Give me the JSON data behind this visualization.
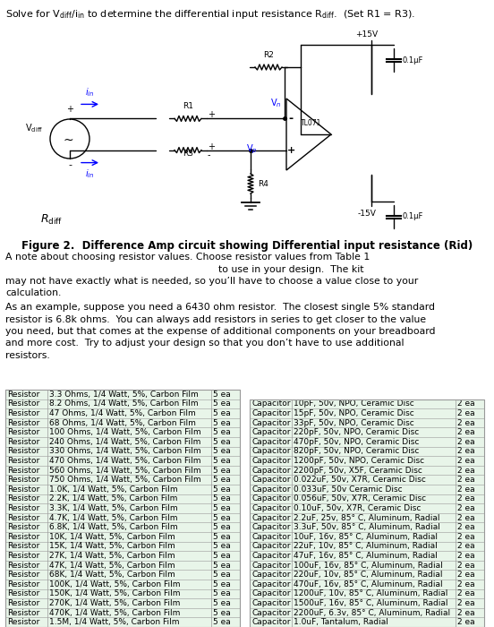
{
  "title_line": "Solve for V$_{\\rm diff}$/i$_{\\rm in}$ to determine the differential input resistance R$_{\\rm diff}$.  (Set R1 = R3).",
  "fig_caption": "Figure 2.  Difference Amp circuit showing Differential input resistance (Rid)",
  "para1_lines": [
    "A note about choosing resistor values. Choose resistor values from Table 1",
    "                                                                    to use in your design.  The kit",
    "may not have exactly what is needed, so you’ll have to choose a value close to your",
    "calculation."
  ],
  "para2_lines": [
    "As an example, suppose you need a 6430 ohm resistor.  The closest single 5% standard",
    "resistor is 6.8k ohms.  You can always add resistors in series to get closer to the value",
    "you need, but that comes at the expense of additional components on your breadboard",
    "and more cost.  Try to adjust your design so that you don’t have to use additional",
    "resistors."
  ],
  "resistor_rows": [
    [
      "Resistor",
      "3.3 Ohms, 1/4 Watt, 5%, Carbon Film",
      "5 ea"
    ],
    [
      "Resistor",
      "8.2 Ohms, 1/4 Watt, 5%, Carbon Film",
      "5 ea"
    ],
    [
      "Resistor",
      "47 Ohms, 1/4 Watt, 5%, Carbon Film",
      "5 ea"
    ],
    [
      "Resistor",
      "68 Ohms, 1/4 Watt, 5%, Carbon Film",
      "5 ea"
    ],
    [
      "Resistor",
      "100 Ohms, 1/4 Watt, 5%, Carbon Film",
      "5 ea"
    ],
    [
      "Resistor",
      "240 Ohms, 1/4 Watt, 5%, Carbon Film",
      "5 ea"
    ],
    [
      "Resistor",
      "330 Ohms, 1/4 Watt, 5%, Carbon Film",
      "5 ea"
    ],
    [
      "Resistor",
      "470 Ohms, 1/4 Watt, 5%, Carbon Film",
      "5 ea"
    ],
    [
      "Resistor",
      "560 Ohms, 1/4 Watt, 5%, Carbon Film",
      "5 ea"
    ],
    [
      "Resistor",
      "750 Ohms, 1/4 Watt, 5%, Carbon Film",
      "5 ea"
    ],
    [
      "Resistor",
      "1.0K, 1/4 Watt, 5%, Carbon Film",
      "5 ea"
    ],
    [
      "Resistor",
      "2.2K, 1/4 Watt, 5%, Carbon Film",
      "5 ea"
    ],
    [
      "Resistor",
      "3.3K, 1/4 Watt, 5%, Carbon Film",
      "5 ea"
    ],
    [
      "Resistor",
      "4.7K, 1/4 Watt, 5%, Carbon Film",
      "5 ea"
    ],
    [
      "Resistor",
      "6.8K, 1/4 Watt, 5%, Carbon Film",
      "5 ea"
    ],
    [
      "Resistor",
      "10K, 1/4 Watt, 5%, Carbon Film",
      "5 ea"
    ],
    [
      "Resistor",
      "15K, 1/4 Watt, 5%, Carbon Film",
      "5 ea"
    ],
    [
      "Resistor",
      "27K, 1/4 Watt, 5%, Carbon Film",
      "5 ea"
    ],
    [
      "Resistor",
      "47K, 1/4 Watt, 5%, Carbon Film",
      "5 ea"
    ],
    [
      "Resistor",
      "68K, 1/4 Watt, 5%, Carbon Film",
      "5 ea"
    ],
    [
      "Resistor",
      "100K, 1/4 Watt, 5%, Carbon Film",
      "5 ea"
    ],
    [
      "Resistor",
      "150K, 1/4 Watt, 5%, Carbon Film",
      "5 ea"
    ],
    [
      "Resistor",
      "270K, 1/4 Watt, 5%, Carbon Film",
      "5 ea"
    ],
    [
      "Resistor",
      "470K, 1/4 Watt, 5%, Carbon Film",
      "5 ea"
    ],
    [
      "Resistor",
      "1.5M, 1/4 Watt, 5%, Carbon Film",
      "5 ea"
    ]
  ],
  "capacitor_rows": [
    [
      "Capacitor",
      "10pF, 50v, NPO, Ceramic Disc",
      "2 ea"
    ],
    [
      "Capacitor",
      "15pF, 50v, NPO, Ceramic Disc",
      "2 ea"
    ],
    [
      "Capacitor",
      "33pF, 50v, NPO, Ceramic Disc",
      "2 ea"
    ],
    [
      "Capacitor",
      "220pF, 50v, NPO, Ceramic Disc",
      "2 ea"
    ],
    [
      "Capacitor",
      "470pF, 50v, NPO, Ceramic Disc",
      "2 ea"
    ],
    [
      "Capacitor",
      "820pF, 50v, NPO, Ceramic Disc",
      "2 ea"
    ],
    [
      "Capacitor",
      "1200pF, 50v, NPO, Ceramic Disc",
      "2 ea"
    ],
    [
      "Capacitor",
      "2200pF, 50v, X5F, Ceramic Disc",
      "2 ea"
    ],
    [
      "Capacitor",
      "0.022uF, 50v, X7R, Ceramic Disc",
      "2 ea"
    ],
    [
      "Capacitor",
      "0.033uF, 50v Ceramic Disc",
      "2 ea"
    ],
    [
      "Capacitor",
      "0.056uF, 50v, X7R, Ceramic Disc",
      "2 ea"
    ],
    [
      "Capacitor",
      "0.10uF, 50v, X7R, Ceramic Disc",
      "2 ea"
    ],
    [
      "Capacitor",
      "2.2uF, 25v, 85° C, Aluminum, Radial",
      "2 ea"
    ],
    [
      "Capacitor",
      "3.3uF, 50v, 85° C, Aluminum, Radial",
      "2 ea"
    ],
    [
      "Capacitor",
      "10uF, 16v, 85° C, Aluminum, Radial",
      "2 ea"
    ],
    [
      "Capacitor",
      "22uF, 10v, 85° C, Aluminum, Radial",
      "2 ea"
    ],
    [
      "Capacitor",
      "47uF, 16v, 85° C, Aluminum, Radial",
      "2 ea"
    ],
    [
      "Capacitor",
      "100uF, 16v, 85° C, Aluminum, Radial",
      "2 ea"
    ],
    [
      "Capacitor",
      "220uF, 10v, 85° C, Aluminum, Radial",
      "2 ea"
    ],
    [
      "Capacitor",
      "470uF, 16v, 85° C, Aluminum, Radial",
      "2 ea"
    ],
    [
      "Capacitor",
      "1200uF, 10v, 85° C, Aluminum, Radial",
      "2 ea"
    ],
    [
      "Capacitor",
      "1500uF, 16v, 85° C, Aluminum, Radial",
      "2 ea"
    ],
    [
      "Capacitor",
      "2200uF, 6.3v, 85° C, Aluminum, Radial",
      "2 ea"
    ],
    [
      "Capacitor",
      "1.0uF, Tantalum, Radial",
      "2 ea"
    ]
  ],
  "table_bg": "#e8f5e9",
  "table_border": "#999999",
  "bg_color": "#ffffff",
  "text_color": "#000000"
}
